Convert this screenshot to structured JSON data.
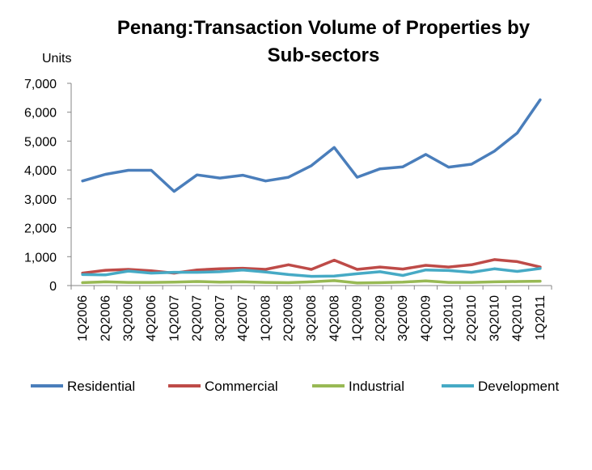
{
  "chart_data": {
    "type": "line",
    "title_lines": [
      "Penang:Transaction Volume of Properties by",
      "Sub-sectors"
    ],
    "ylabel": "Units",
    "xlabel": "",
    "ylim": [
      0,
      7000
    ],
    "yticks": [
      "0",
      "1,000",
      "2,000",
      "3,000",
      "4,000",
      "5,000",
      "6,000",
      "7,000"
    ],
    "categories": [
      "1Q2006",
      "2Q2006",
      "3Q2006",
      "4Q2006",
      "1Q2007",
      "2Q2007",
      "3Q2007",
      "4Q2007",
      "1Q2008",
      "2Q2008",
      "3Q2008",
      "4Q2008",
      "1Q2009",
      "2Q2009",
      "3Q2009",
      "4Q2009",
      "1Q2010",
      "2Q2010",
      "3Q2010",
      "4Q2010",
      "1Q2011"
    ],
    "grid": false,
    "legend_position": "bottom",
    "series": [
      {
        "name": "Residential",
        "color": "#4a7ebb",
        "values": [
          3620,
          3850,
          3990,
          3990,
          3260,
          3830,
          3720,
          3820,
          3620,
          3750,
          4150,
          4780,
          3750,
          4040,
          4110,
          4540,
          4100,
          4200,
          4650,
          5280,
          6430
        ]
      },
      {
        "name": "Commercial",
        "color": "#be4b48",
        "values": [
          430,
          530,
          560,
          510,
          430,
          540,
          580,
          600,
          560,
          720,
          560,
          880,
          560,
          640,
          570,
          700,
          640,
          720,
          900,
          830,
          640
        ]
      },
      {
        "name": "Industrial",
        "color": "#98b954",
        "values": [
          100,
          130,
          110,
          110,
          120,
          140,
          120,
          130,
          110,
          100,
          130,
          170,
          90,
          100,
          120,
          160,
          110,
          110,
          130,
          140,
          150
        ]
      },
      {
        "name": "Development",
        "color": "#46aac5",
        "values": [
          380,
          370,
          500,
          430,
          460,
          460,
          480,
          540,
          470,
          380,
          320,
          330,
          410,
          480,
          350,
          540,
          520,
          460,
          580,
          490,
          590
        ]
      }
    ]
  }
}
